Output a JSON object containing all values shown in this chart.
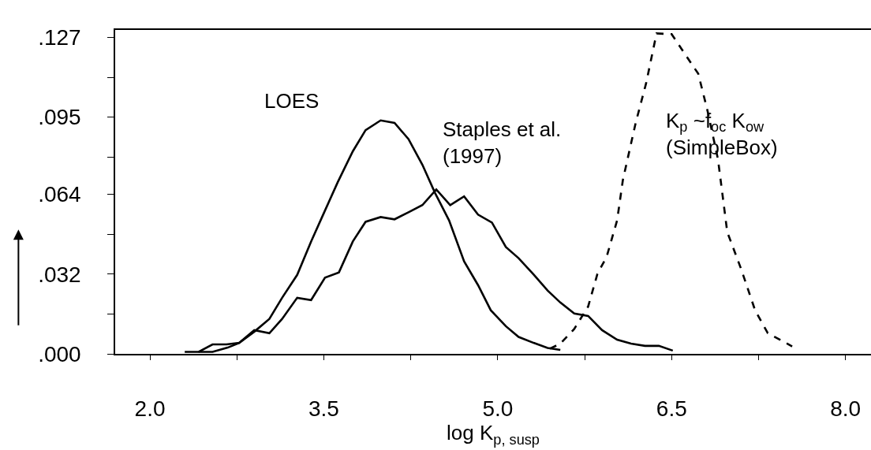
{
  "chart_data": {
    "type": "line",
    "xlabel": "log K$_{p, susp}$",
    "xlim": [
      1.7,
      8.22
    ],
    "xticks": [
      {
        "value": 2.0,
        "label": "2.0"
      },
      {
        "value": 2.75,
        "label": null
      },
      {
        "value": 3.5,
        "label": "3.5"
      },
      {
        "value": 4.25,
        "label": null
      },
      {
        "value": 5.0,
        "label": "5.0"
      },
      {
        "value": 5.75,
        "label": null
      },
      {
        "value": 6.5,
        "label": "6.5"
      },
      {
        "value": 7.25,
        "label": null
      },
      {
        "value": 8.0,
        "label": "8.0"
      }
    ],
    "ylim": [
      0,
      0.13
    ],
    "yticks": [
      {
        "value": 0,
        "label": ".000"
      },
      {
        "value": 0.016,
        "label": null
      },
      {
        "value": 0.032,
        "label": ".032"
      },
      {
        "value": 0.048,
        "label": null
      },
      {
        "value": 0.064,
        "label": ".064"
      },
      {
        "value": 0.079,
        "label": null
      },
      {
        "value": 0.095,
        "label": ".095"
      },
      {
        "value": 0.111,
        "label": null
      },
      {
        "value": 0.127,
        "label": ".127"
      }
    ],
    "legend": false,
    "marker": "none",
    "series": [
      {
        "name": "LOES",
        "color": "#000000",
        "line_style": "solid",
        "x": [
          2.42,
          2.54,
          2.67,
          2.77,
          2.9,
          3.03,
          3.14,
          3.27,
          3.39,
          3.5,
          3.62,
          3.75,
          3.86,
          3.99,
          4.11,
          4.23,
          4.35,
          4.46,
          4.58,
          4.71,
          4.83,
          4.94,
          5.07,
          5.18,
          5.31,
          5.43,
          5.54
        ],
        "values": [
          0.0008,
          0.0008,
          0.0025,
          0.0044,
          0.0089,
          0.014,
          0.0225,
          0.0317,
          0.0451,
          0.0565,
          0.0689,
          0.0813,
          0.0898,
          0.0937,
          0.0927,
          0.0862,
          0.0759,
          0.0645,
          0.0536,
          0.0371,
          0.0276,
          0.0175,
          0.0111,
          0.0068,
          0.0044,
          0.0024,
          0.0016
        ]
      },
      {
        "name": "Staples et al.\n(1997)",
        "color": "#000000",
        "line_style": "solid",
        "x": [
          2.3,
          2.42,
          2.54,
          2.66,
          2.77,
          2.9,
          3.03,
          3.14,
          3.27,
          3.39,
          3.51,
          3.63,
          3.75,
          3.86,
          3.99,
          4.11,
          4.23,
          4.35,
          4.47,
          4.59,
          4.71,
          4.83,
          4.95,
          5.07,
          5.18,
          5.31,
          5.43,
          5.54,
          5.66,
          5.78,
          5.9,
          6.03,
          6.15,
          6.27,
          6.39,
          6.51
        ],
        "values": [
          0.0008,
          0.0008,
          0.0038,
          0.0038,
          0.0044,
          0.0095,
          0.0083,
          0.014,
          0.0225,
          0.0216,
          0.0306,
          0.0327,
          0.0451,
          0.053,
          0.0549,
          0.054,
          0.0568,
          0.0597,
          0.066,
          0.0597,
          0.0632,
          0.0559,
          0.0527,
          0.0429,
          0.0384,
          0.0318,
          0.0254,
          0.0206,
          0.0162,
          0.0152,
          0.0095,
          0.0057,
          0.0041,
          0.0032,
          0.0032,
          0.0013
        ]
      },
      {
        "name": "K$_{p}$ ~f$_{oc}$ K$_{ow}$\n(SimpleBox)",
        "color": "#000000",
        "line_style": "dashed",
        "x": [
          5.45,
          5.54,
          5.66,
          5.78,
          5.86,
          5.94,
          6.03,
          6.08,
          6.19,
          6.28,
          6.37,
          6.5,
          6.73,
          6.81,
          6.9,
          6.98,
          7.1,
          7.22,
          7.33,
          7.54
        ],
        "values": [
          0.0021,
          0.0041,
          0.01,
          0.019,
          0.0321,
          0.039,
          0.0536,
          0.0699,
          0.0927,
          0.1086,
          0.1286,
          0.1283,
          0.1124,
          0.0975,
          0.0781,
          0.0489,
          0.034,
          0.0175,
          0.0083,
          0.003
        ]
      }
    ]
  }
}
